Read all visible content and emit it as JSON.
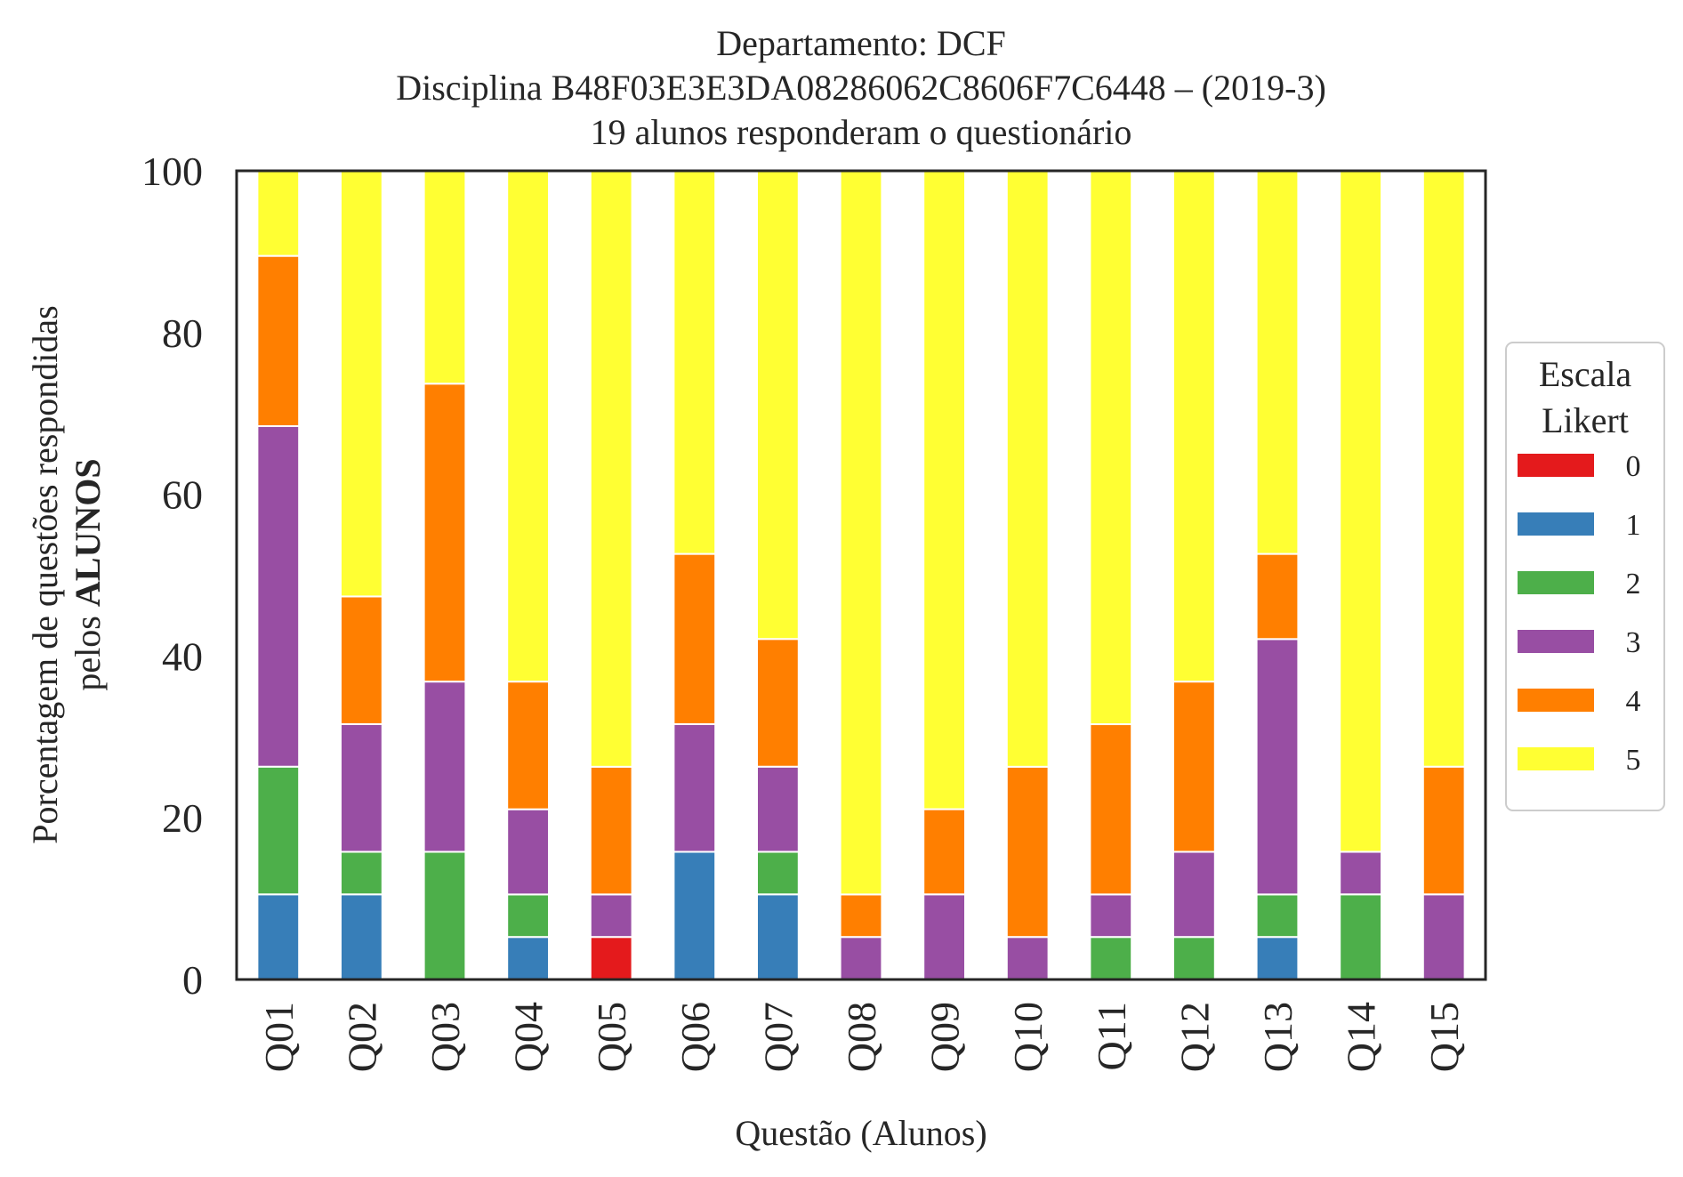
{
  "chart_data": {
    "type": "bar",
    "stacked": true,
    "title_lines": [
      "Departamento: DCF",
      "Disciplina B48F03E3E3DA08286062C8606F7C6448 – (2019-3)",
      "19 alunos responderam o questionário"
    ],
    "xlabel": "Questão (Alunos)",
    "ylabel_line1": "Porcentagem de questões respondidas",
    "ylabel_line2_prefix": "pelos ",
    "ylabel_line2_bold": "ALUNOS",
    "ylim": [
      0,
      100
    ],
    "yticks": [
      "0",
      "20",
      "40",
      "60",
      "80",
      "100"
    ],
    "grid": false,
    "legend": {
      "title_line1": "Escala",
      "title_line2": "Likert",
      "placement": "right"
    },
    "categories": [
      "Q01",
      "Q02",
      "Q03",
      "Q04",
      "Q05",
      "Q06",
      "Q07",
      "Q08",
      "Q09",
      "Q10",
      "Q11",
      "Q12",
      "Q13",
      "Q14",
      "Q15"
    ],
    "series": [
      {
        "name": "0",
        "color": "#e41a1c",
        "values": [
          0,
          0,
          0,
          0,
          5.26,
          0,
          0,
          0,
          0,
          0,
          0,
          0,
          0,
          0,
          0
        ]
      },
      {
        "name": "1",
        "color": "#377eb8",
        "values": [
          10.53,
          10.53,
          0,
          5.26,
          0,
          15.79,
          10.53,
          0,
          0,
          0,
          0,
          0,
          5.26,
          0,
          0
        ]
      },
      {
        "name": "2",
        "color": "#4daf4a",
        "values": [
          15.79,
          5.26,
          15.79,
          5.26,
          0,
          0,
          5.26,
          0,
          0,
          0,
          5.26,
          5.26,
          5.26,
          10.53,
          0
        ]
      },
      {
        "name": "3",
        "color": "#984ea3",
        "values": [
          42.11,
          15.79,
          21.05,
          10.53,
          5.26,
          15.79,
          10.53,
          5.26,
          10.53,
          5.26,
          5.26,
          10.53,
          31.58,
          5.26,
          10.53
        ]
      },
      {
        "name": "4",
        "color": "#ff7f00",
        "values": [
          21.05,
          15.79,
          36.84,
          15.79,
          15.79,
          21.05,
          15.79,
          5.26,
          10.53,
          21.05,
          21.05,
          21.05,
          10.53,
          0,
          15.79
        ]
      },
      {
        "name": "5",
        "color": "#ffff33",
        "values": [
          10.53,
          52.63,
          26.32,
          63.16,
          73.68,
          47.37,
          57.89,
          89.47,
          78.95,
          73.68,
          68.42,
          63.16,
          47.37,
          84.21,
          73.68
        ]
      }
    ]
  }
}
